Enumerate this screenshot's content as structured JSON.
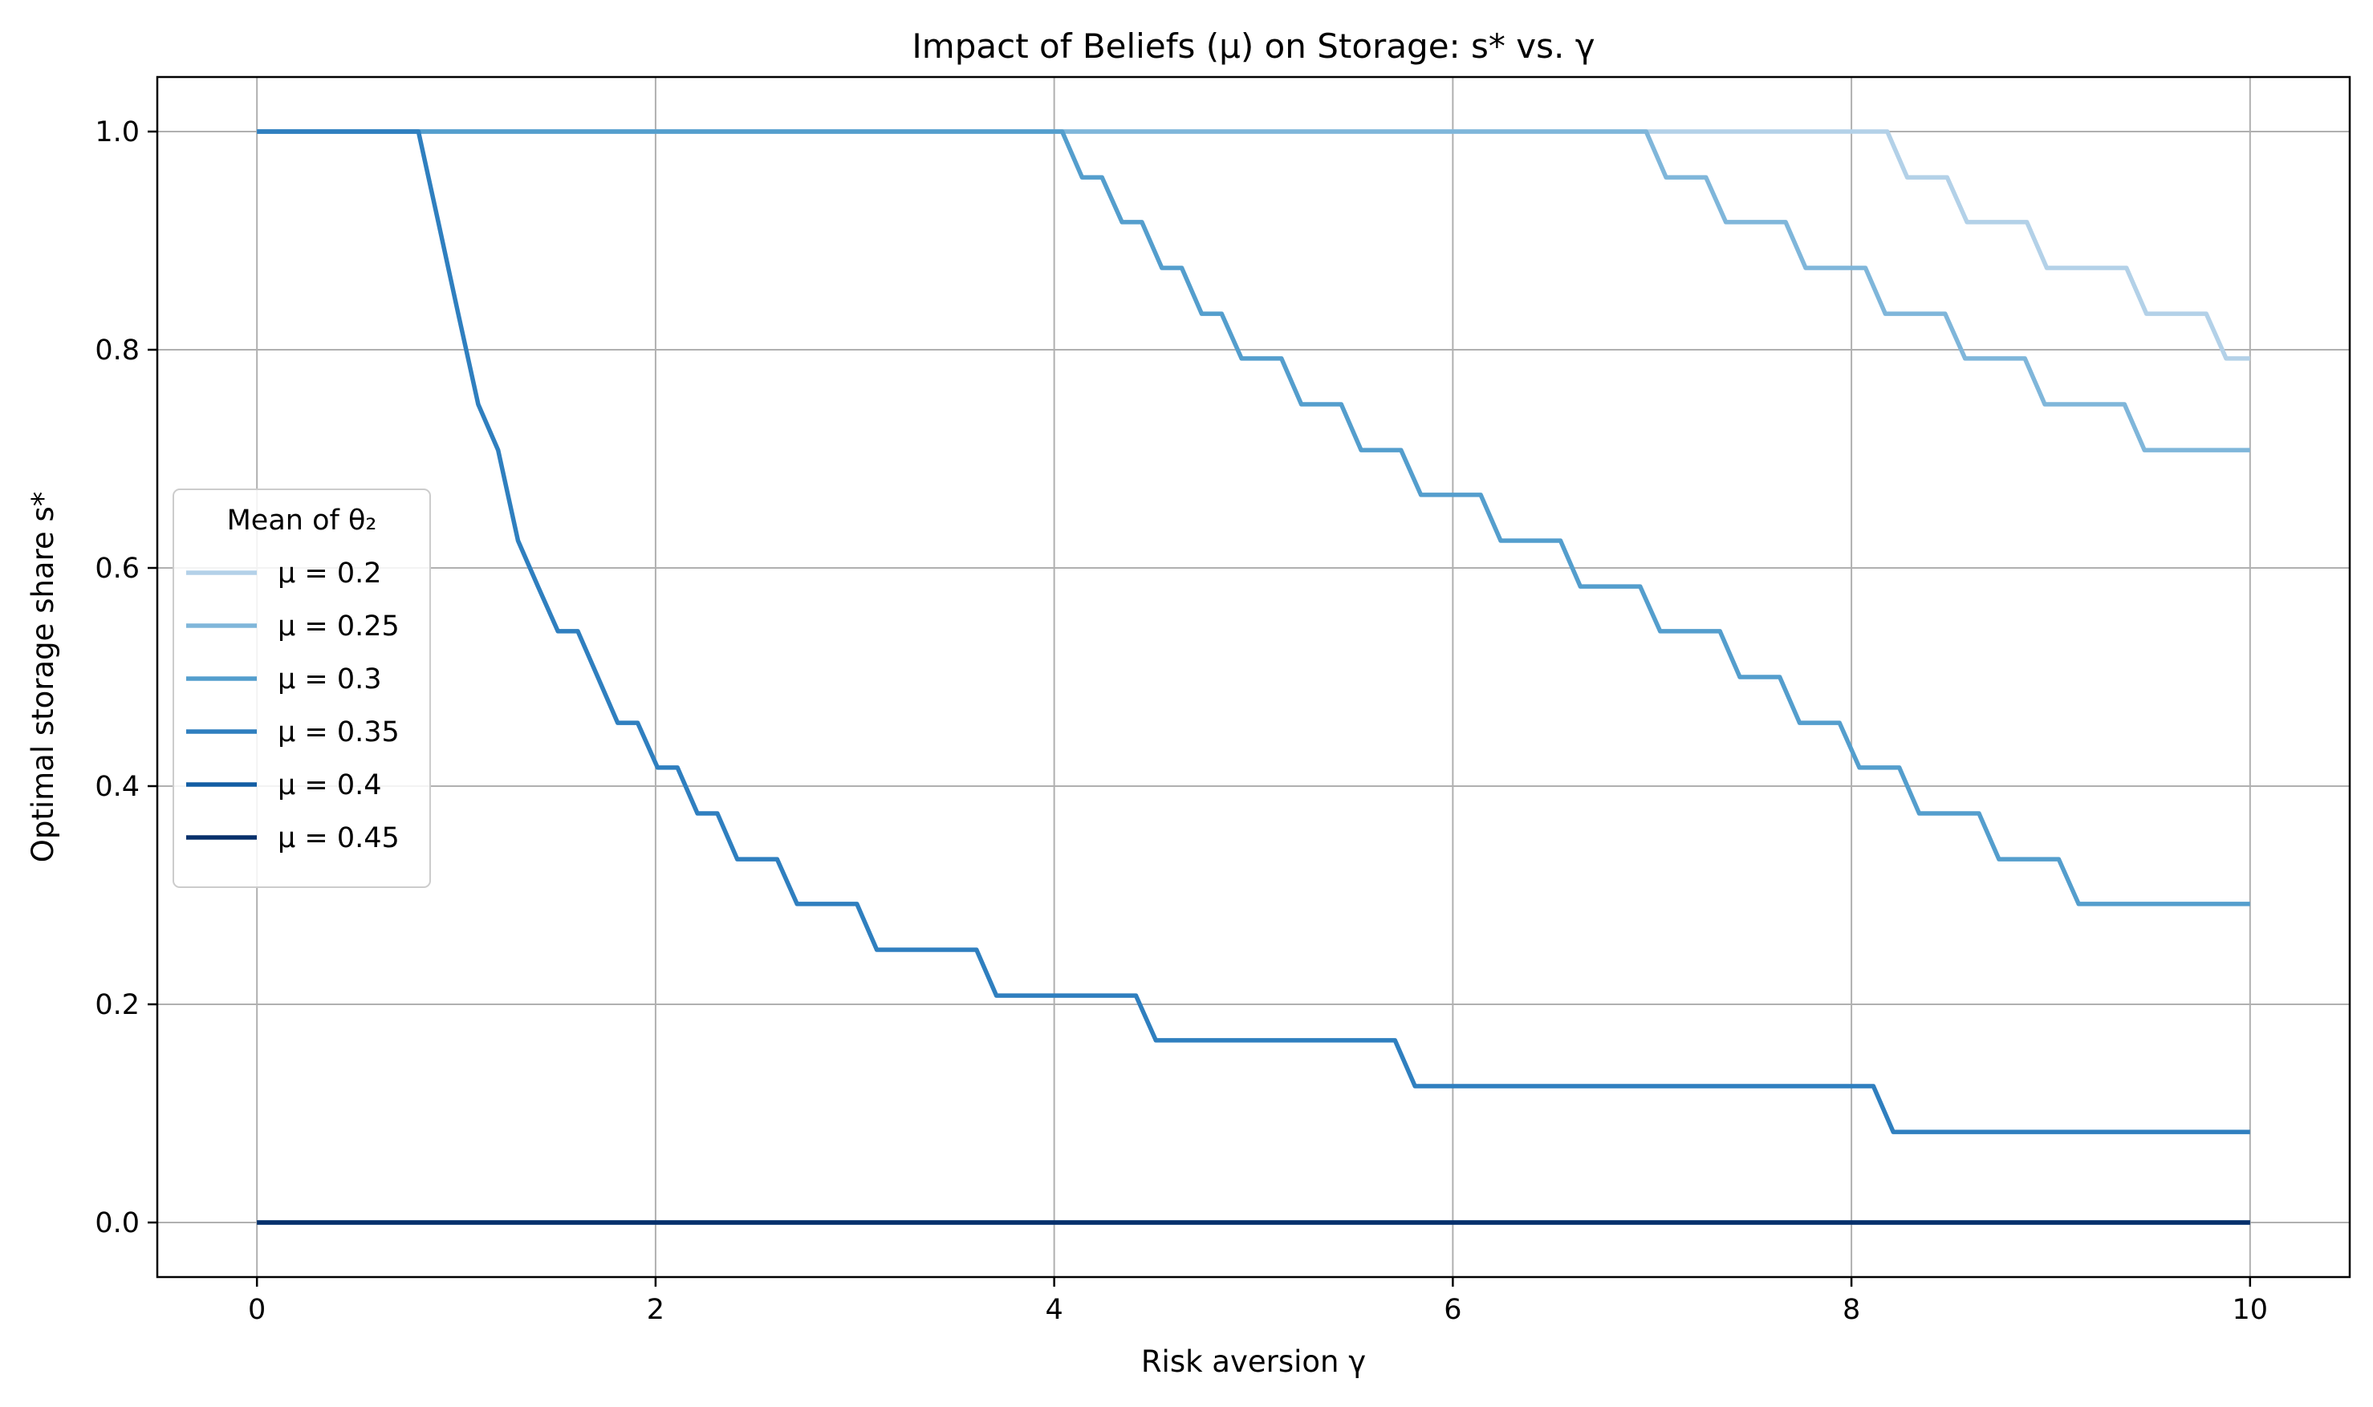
{
  "chart_data": {
    "type": "line",
    "title": "Impact of Beliefs (μ) on Storage: s* vs. γ",
    "xlabel": "Risk aversion γ",
    "ylabel": "Optimal storage share s*",
    "xlim": [
      -0.5,
      10.5
    ],
    "ylim": [
      -0.05,
      1.05
    ],
    "xticks": [
      0,
      2,
      4,
      6,
      8,
      10
    ],
    "xtick_labels": [
      "0",
      "2",
      "4",
      "6",
      "8",
      "10"
    ],
    "yticks": [
      0.0,
      0.2,
      0.4,
      0.6,
      0.8,
      1.0
    ],
    "ytick_labels": [
      "0.0",
      "0.2",
      "0.4",
      "0.6",
      "0.8",
      "1.0"
    ],
    "grid": true,
    "legend": {
      "title": "Mean of θ₂",
      "placement": "center-left"
    },
    "series": [
      {
        "name": "μ = 0.2",
        "color": "#b3d1e8",
        "x": [
          0,
          8.18,
          8.28,
          8.48,
          8.58,
          8.88,
          8.98,
          9.38,
          9.48,
          9.78,
          9.88,
          10
        ],
        "y": [
          1.0,
          1.0,
          0.958,
          0.958,
          0.917,
          0.917,
          0.875,
          0.875,
          0.833,
          0.833,
          0.792,
          0.792
        ]
      },
      {
        "name": "μ = 0.25",
        "color": "#7fb6da",
        "x": [
          0,
          6.97,
          7.07,
          7.27,
          7.37,
          7.67,
          7.77,
          8.07,
          8.17,
          8.47,
          8.57,
          8.87,
          8.97,
          9.37,
          9.47,
          10
        ],
        "y": [
          1.0,
          1.0,
          0.958,
          0.958,
          0.917,
          0.917,
          0.875,
          0.875,
          0.833,
          0.833,
          0.792,
          0.792,
          0.75,
          0.75,
          0.708,
          0.708
        ]
      },
      {
        "name": "μ = 0.3",
        "color": "#549ecd",
        "x": [
          0,
          4.04,
          4.14,
          4.24,
          4.34,
          4.44,
          4.54,
          4.64,
          4.74,
          4.84,
          4.94,
          5.14,
          5.24,
          5.44,
          5.54,
          5.74,
          5.84,
          6.14,
          6.24,
          6.54,
          6.64,
          6.94,
          7.04,
          7.34,
          7.44,
          7.64,
          7.74,
          7.94,
          8.04,
          8.24,
          8.34,
          8.64,
          8.74,
          9.04,
          9.14,
          10
        ],
        "y": [
          1.0,
          1.0,
          0.958,
          0.958,
          0.917,
          0.917,
          0.875,
          0.875,
          0.833,
          0.833,
          0.792,
          0.792,
          0.75,
          0.75,
          0.708,
          0.708,
          0.667,
          0.667,
          0.625,
          0.625,
          0.583,
          0.583,
          0.542,
          0.542,
          0.5,
          0.5,
          0.458,
          0.458,
          0.417,
          0.417,
          0.375,
          0.375,
          0.333,
          0.333,
          0.292,
          0.292
        ]
      },
      {
        "name": "μ = 0.35",
        "color": "#2f7fbf",
        "x": [
          0,
          0.81,
          0.91,
          1.01,
          1.11,
          1.21,
          1.31,
          1.41,
          1.51,
          1.61,
          1.71,
          1.81,
          1.91,
          2.01,
          2.11,
          2.21,
          2.31,
          2.41,
          2.61,
          2.71,
          3.01,
          3.11,
          3.61,
          3.71,
          4.41,
          4.51,
          5.71,
          5.81,
          8.11,
          8.21,
          10
        ],
        "y": [
          1.0,
          1.0,
          0.917,
          0.833,
          0.75,
          0.708,
          0.625,
          0.583,
          0.542,
          0.542,
          0.5,
          0.458,
          0.458,
          0.417,
          0.417,
          0.375,
          0.375,
          0.333,
          0.333,
          0.292,
          0.292,
          0.25,
          0.25,
          0.208,
          0.208,
          0.167,
          0.167,
          0.125,
          0.125,
          0.083,
          0.083
        ]
      },
      {
        "name": "μ = 0.4",
        "color": "#135ea4",
        "x": [
          0,
          10
        ],
        "y": [
          0.0,
          0.0
        ]
      },
      {
        "name": "μ = 0.45",
        "color": "#08306b",
        "x": [
          0,
          10
        ],
        "y": [
          0.0,
          0.0
        ]
      }
    ]
  }
}
